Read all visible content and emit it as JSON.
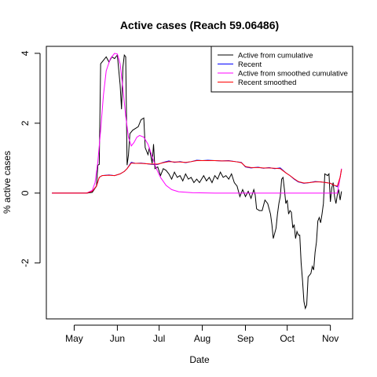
{
  "chart_data": {
    "type": "line",
    "title": "Active cases (Reach 59.06486)",
    "xlabel": "Date",
    "ylabel": "% active cases",
    "x_ticks": [
      {
        "label": "May",
        "x": "2020-05-01"
      },
      {
        "label": "Jun",
        "x": "2020-06-01"
      },
      {
        "label": "Jul",
        "x": "2020-07-01"
      },
      {
        "label": "Aug",
        "x": "2020-08-01"
      },
      {
        "label": "Sep",
        "x": "2020-09-01"
      },
      {
        "label": "Oct",
        "x": "2020-10-01"
      },
      {
        "label": "Nov",
        "x": "2020-11-01"
      }
    ],
    "y_ticks": [
      -2,
      0,
      2,
      4
    ],
    "xlim": [
      "2020-04-11",
      "2020-11-17"
    ],
    "ylim": [
      -3.6,
      4.2
    ],
    "legend_position": "top-right",
    "grid": false,
    "series": [
      {
        "name": "Active from cumulative",
        "color": "#000000",
        "points": [
          [
            "2020-04-15",
            0
          ],
          [
            "2020-05-10",
            0
          ],
          [
            "2020-05-14",
            0.02
          ],
          [
            "2020-05-17",
            0.2
          ],
          [
            "2020-05-18",
            0.8
          ],
          [
            "2020-05-19",
            0.82
          ],
          [
            "2020-05-20",
            3.7
          ],
          [
            "2020-05-22",
            3.8
          ],
          [
            "2020-05-24",
            3.9
          ],
          [
            "2020-05-26",
            3.75
          ],
          [
            "2020-05-28",
            3.9
          ],
          [
            "2020-05-30",
            3.85
          ],
          [
            "2020-06-01",
            3.95
          ],
          [
            "2020-06-03",
            3.1
          ],
          [
            "2020-06-04",
            2.4
          ],
          [
            "2020-06-05",
            3.6
          ],
          [
            "2020-06-06",
            3.95
          ],
          [
            "2020-06-07",
            3.9
          ],
          [
            "2020-06-08",
            0.8
          ],
          [
            "2020-06-09",
            1.1
          ],
          [
            "2020-06-10",
            1.7
          ],
          [
            "2020-06-12",
            1.8
          ],
          [
            "2020-06-14",
            1.85
          ],
          [
            "2020-06-16",
            1.9
          ],
          [
            "2020-06-18",
            2.1
          ],
          [
            "2020-06-20",
            2.15
          ],
          [
            "2020-06-21",
            1.3
          ],
          [
            "2020-06-23",
            1.1
          ],
          [
            "2020-06-24",
            1.3
          ],
          [
            "2020-06-26",
            0.85
          ],
          [
            "2020-06-27",
            1.4
          ],
          [
            "2020-06-28",
            0.7
          ],
          [
            "2020-06-30",
            0.75
          ],
          [
            "2020-07-02",
            0.5
          ],
          [
            "2020-07-04",
            0.7
          ],
          [
            "2020-07-06",
            0.65
          ],
          [
            "2020-07-08",
            0.55
          ],
          [
            "2020-07-10",
            0.4
          ],
          [
            "2020-07-12",
            0.6
          ],
          [
            "2020-07-14",
            0.45
          ],
          [
            "2020-07-16",
            0.5
          ],
          [
            "2020-07-18",
            0.35
          ],
          [
            "2020-07-20",
            0.55
          ],
          [
            "2020-07-22",
            0.4
          ],
          [
            "2020-07-24",
            0.45
          ],
          [
            "2020-07-26",
            0.3
          ],
          [
            "2020-07-28",
            0.4
          ],
          [
            "2020-07-30",
            0.3
          ],
          [
            "2020-08-02",
            0.5
          ],
          [
            "2020-08-04",
            0.35
          ],
          [
            "2020-08-06",
            0.45
          ],
          [
            "2020-08-08",
            0.3
          ],
          [
            "2020-08-10",
            0.5
          ],
          [
            "2020-08-12",
            0.4
          ],
          [
            "2020-08-14",
            0.6
          ],
          [
            "2020-08-16",
            0.45
          ],
          [
            "2020-08-18",
            0.5
          ],
          [
            "2020-08-20",
            0.4
          ],
          [
            "2020-08-22",
            0.55
          ],
          [
            "2020-08-24",
            0.3
          ],
          [
            "2020-08-26",
            0.2
          ],
          [
            "2020-08-28",
            -0.1
          ],
          [
            "2020-08-30",
            0.1
          ],
          [
            "2020-09-01",
            -0.1
          ],
          [
            "2020-09-03",
            0.05
          ],
          [
            "2020-09-05",
            -0.15
          ],
          [
            "2020-09-07",
            0.1
          ],
          [
            "2020-09-08",
            -0.05
          ],
          [
            "2020-09-09",
            -0.45
          ],
          [
            "2020-09-11",
            -0.5
          ],
          [
            "2020-09-13",
            -0.5
          ],
          [
            "2020-09-15",
            -0.2
          ],
          [
            "2020-09-17",
            -0.3
          ],
          [
            "2020-09-19",
            -0.6
          ],
          [
            "2020-09-20",
            -0.9
          ],
          [
            "2020-09-21",
            -1.3
          ],
          [
            "2020-09-23",
            -1.0
          ],
          [
            "2020-09-24",
            -0.6
          ],
          [
            "2020-09-25",
            -0.3
          ],
          [
            "2020-09-26",
            -0.1
          ],
          [
            "2020-09-27",
            0.4
          ],
          [
            "2020-09-28",
            0.45
          ],
          [
            "2020-09-29",
            0.1
          ],
          [
            "2020-09-30",
            -0.3
          ],
          [
            "2020-10-01",
            -0.2
          ],
          [
            "2020-10-02",
            -0.6
          ],
          [
            "2020-10-03",
            -0.5
          ],
          [
            "2020-10-04",
            -0.55
          ],
          [
            "2020-10-05",
            -1.0
          ],
          [
            "2020-10-06",
            -0.9
          ],
          [
            "2020-10-07",
            -1.3
          ],
          [
            "2020-10-08",
            -1.1
          ],
          [
            "2020-10-09",
            -1.2
          ],
          [
            "2020-10-10",
            -1.2
          ],
          [
            "2020-10-11",
            -2.0
          ],
          [
            "2020-10-12",
            -2.5
          ],
          [
            "2020-10-13",
            -3.1
          ],
          [
            "2020-10-14",
            -3.3
          ],
          [
            "2020-10-15",
            -3.2
          ],
          [
            "2020-10-16",
            -2.4
          ],
          [
            "2020-10-18",
            -2.3
          ],
          [
            "2020-10-19",
            -2.1
          ],
          [
            "2020-10-20",
            -2.2
          ],
          [
            "2020-10-21",
            -1.7
          ],
          [
            "2020-10-22",
            -1.4
          ],
          [
            "2020-10-23",
            -0.8
          ],
          [
            "2020-10-24",
            -0.7
          ],
          [
            "2020-10-25",
            -0.85
          ],
          [
            "2020-10-26",
            -0.6
          ],
          [
            "2020-10-27",
            -0.3
          ],
          [
            "2020-10-28",
            0.55
          ],
          [
            "2020-10-30",
            0.5
          ],
          [
            "2020-10-31",
            0.55
          ],
          [
            "2020-11-01",
            -0.25
          ],
          [
            "2020-11-02",
            0.15
          ],
          [
            "2020-11-03",
            0.3
          ],
          [
            "2020-11-04",
            -0.1
          ],
          [
            "2020-11-05",
            -0.3
          ],
          [
            "2020-11-06",
            -0.05
          ],
          [
            "2020-11-07",
            0.1
          ],
          [
            "2020-11-08",
            -0.2
          ],
          [
            "2020-11-09",
            0.05
          ]
        ]
      },
      {
        "name": "Recent",
        "color": "#0000ff",
        "points": [
          [
            "2020-04-15",
            0
          ],
          [
            "2020-05-10",
            0
          ],
          [
            "2020-05-14",
            0.05
          ],
          [
            "2020-05-17",
            0.2
          ],
          [
            "2020-05-19",
            0.45
          ],
          [
            "2020-05-21",
            0.5
          ],
          [
            "2020-05-26",
            0.52
          ],
          [
            "2020-05-30",
            0.5
          ],
          [
            "2020-06-03",
            0.55
          ],
          [
            "2020-06-06",
            0.62
          ],
          [
            "2020-06-08",
            0.7
          ],
          [
            "2020-06-11",
            0.88
          ],
          [
            "2020-06-14",
            0.85
          ],
          [
            "2020-06-18",
            0.86
          ],
          [
            "2020-06-22",
            0.84
          ],
          [
            "2020-06-26",
            0.82
          ],
          [
            "2020-06-30",
            0.82
          ],
          [
            "2020-07-04",
            0.88
          ],
          [
            "2020-07-08",
            0.92
          ],
          [
            "2020-07-12",
            0.88
          ],
          [
            "2020-07-16",
            0.9
          ],
          [
            "2020-07-20",
            0.87
          ],
          [
            "2020-07-24",
            0.9
          ],
          [
            "2020-07-28",
            0.94
          ],
          [
            "2020-08-01",
            0.93
          ],
          [
            "2020-08-05",
            0.94
          ],
          [
            "2020-08-10",
            0.93
          ],
          [
            "2020-08-15",
            0.92
          ],
          [
            "2020-08-20",
            0.93
          ],
          [
            "2020-08-25",
            0.9
          ],
          [
            "2020-08-29",
            0.88
          ],
          [
            "2020-09-01",
            0.75
          ],
          [
            "2020-09-05",
            0.72
          ],
          [
            "2020-09-10",
            0.74
          ],
          [
            "2020-09-14",
            0.71
          ],
          [
            "2020-09-18",
            0.73
          ],
          [
            "2020-09-22",
            0.7
          ],
          [
            "2020-09-26",
            0.72
          ],
          [
            "2020-09-30",
            0.58
          ],
          [
            "2020-10-03",
            0.5
          ],
          [
            "2020-10-06",
            0.4
          ],
          [
            "2020-10-09",
            0.32
          ],
          [
            "2020-10-13",
            0.28
          ],
          [
            "2020-10-17",
            0.3
          ],
          [
            "2020-10-21",
            0.33
          ],
          [
            "2020-10-25",
            0.32
          ],
          [
            "2020-10-29",
            0.3
          ],
          [
            "2020-11-01",
            0.28
          ],
          [
            "2020-11-04",
            0.22
          ],
          [
            "2020-11-06",
            0.18
          ],
          [
            "2020-11-08",
            0.45
          ],
          [
            "2020-11-09",
            0.68
          ]
        ]
      },
      {
        "name": "Active from smoothed cumulative",
        "color": "#ff00ff",
        "points": [
          [
            "2020-04-15",
            0
          ],
          [
            "2020-05-10",
            0
          ],
          [
            "2020-05-14",
            0.08
          ],
          [
            "2020-05-16",
            0.3
          ],
          [
            "2020-05-18",
            0.9
          ],
          [
            "2020-05-20",
            1.8
          ],
          [
            "2020-05-22",
            2.8
          ],
          [
            "2020-05-24",
            3.5
          ],
          [
            "2020-05-27",
            3.85
          ],
          [
            "2020-05-30",
            4.0
          ],
          [
            "2020-06-01",
            3.98
          ],
          [
            "2020-06-03",
            3.7
          ],
          [
            "2020-06-05",
            3.0
          ],
          [
            "2020-06-07",
            2.2
          ],
          [
            "2020-06-09",
            1.6
          ],
          [
            "2020-06-11",
            1.35
          ],
          [
            "2020-06-13",
            1.45
          ],
          [
            "2020-06-15",
            1.6
          ],
          [
            "2020-06-17",
            1.65
          ],
          [
            "2020-06-20",
            1.6
          ],
          [
            "2020-06-23",
            1.4
          ],
          [
            "2020-06-26",
            1.05
          ],
          [
            "2020-06-29",
            0.7
          ],
          [
            "2020-07-02",
            0.45
          ],
          [
            "2020-07-06",
            0.22
          ],
          [
            "2020-07-10",
            0.1
          ],
          [
            "2020-07-15",
            0.04
          ],
          [
            "2020-07-25",
            0.01
          ],
          [
            "2020-08-10",
            0.0
          ],
          [
            "2020-11-06",
            0.0
          ],
          [
            "2020-11-07",
            0.2
          ],
          [
            "2020-11-08",
            0.45
          ],
          [
            "2020-11-09",
            0.7
          ]
        ]
      },
      {
        "name": "Recent smoothed",
        "color": "#ff0000",
        "points": [
          [
            "2020-04-15",
            0
          ],
          [
            "2020-05-10",
            0
          ],
          [
            "2020-05-14",
            0.05
          ],
          [
            "2020-05-17",
            0.2
          ],
          [
            "2020-05-19",
            0.45
          ],
          [
            "2020-05-21",
            0.5
          ],
          [
            "2020-05-26",
            0.51
          ],
          [
            "2020-05-30",
            0.5
          ],
          [
            "2020-06-03",
            0.55
          ],
          [
            "2020-06-06",
            0.62
          ],
          [
            "2020-06-08",
            0.7
          ],
          [
            "2020-06-11",
            0.86
          ],
          [
            "2020-06-14",
            0.85
          ],
          [
            "2020-06-18",
            0.85
          ],
          [
            "2020-06-22",
            0.84
          ],
          [
            "2020-06-26",
            0.83
          ],
          [
            "2020-06-30",
            0.83
          ],
          [
            "2020-07-04",
            0.87
          ],
          [
            "2020-07-08",
            0.9
          ],
          [
            "2020-07-12",
            0.89
          ],
          [
            "2020-07-16",
            0.89
          ],
          [
            "2020-07-20",
            0.88
          ],
          [
            "2020-07-24",
            0.9
          ],
          [
            "2020-07-28",
            0.93
          ],
          [
            "2020-08-01",
            0.93
          ],
          [
            "2020-08-05",
            0.93
          ],
          [
            "2020-08-10",
            0.93
          ],
          [
            "2020-08-15",
            0.92
          ],
          [
            "2020-08-20",
            0.92
          ],
          [
            "2020-08-25",
            0.9
          ],
          [
            "2020-08-29",
            0.87
          ],
          [
            "2020-09-01",
            0.76
          ],
          [
            "2020-09-05",
            0.73
          ],
          [
            "2020-09-10",
            0.73
          ],
          [
            "2020-09-14",
            0.72
          ],
          [
            "2020-09-18",
            0.72
          ],
          [
            "2020-09-22",
            0.71
          ],
          [
            "2020-09-26",
            0.7
          ],
          [
            "2020-09-30",
            0.58
          ],
          [
            "2020-10-03",
            0.5
          ],
          [
            "2020-10-06",
            0.41
          ],
          [
            "2020-10-09",
            0.33
          ],
          [
            "2020-10-13",
            0.29
          ],
          [
            "2020-10-17",
            0.3
          ],
          [
            "2020-10-21",
            0.32
          ],
          [
            "2020-10-25",
            0.32
          ],
          [
            "2020-10-29",
            0.3
          ],
          [
            "2020-11-01",
            0.28
          ],
          [
            "2020-11-04",
            0.22
          ],
          [
            "2020-11-06",
            0.2
          ],
          [
            "2020-11-08",
            0.45
          ],
          [
            "2020-11-09",
            0.68
          ]
        ]
      }
    ]
  }
}
